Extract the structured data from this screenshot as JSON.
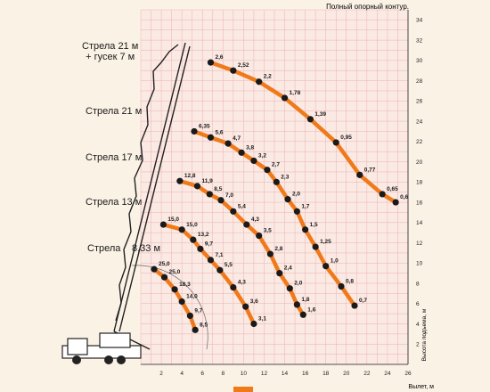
{
  "chart_data": {
    "type": "line",
    "title": "Полный опорный контур.",
    "xlabel": "Вылет, м",
    "ylabel": "Высота подъема, м",
    "xlim": [
      0,
      26
    ],
    "ylim": [
      0,
      35
    ],
    "x_ticks": [
      2,
      4,
      6,
      8,
      10,
      12,
      14,
      16,
      18,
      20,
      22,
      24,
      26
    ],
    "y_ticks": [
      2,
      4,
      6,
      8,
      10,
      12,
      14,
      16,
      18,
      20,
      22,
      24,
      26,
      28,
      30,
      32,
      34
    ],
    "grid": true,
    "series_color": "#f07a1a",
    "series": [
      {
        "name": "Стрела 21 м + гусек 7 м",
        "points": [
          {
            "x": 6.8,
            "y": 29.8,
            "label": "2,6"
          },
          {
            "x": 9.0,
            "y": 29.0,
            "label": "2,52"
          },
          {
            "x": 11.5,
            "y": 27.9,
            "label": "2,2"
          },
          {
            "x": 14.0,
            "y": 26.3,
            "label": "1,78"
          },
          {
            "x": 16.5,
            "y": 24.2,
            "label": "1,39"
          },
          {
            "x": 19.0,
            "y": 21.9,
            "label": "0,95"
          },
          {
            "x": 21.3,
            "y": 18.7,
            "label": "0,77"
          },
          {
            "x": 23.5,
            "y": 16.8,
            "label": "0,65"
          },
          {
            "x": 24.8,
            "y": 16.0,
            "label": "0,6"
          }
        ]
      },
      {
        "name": "Стрела 21 м",
        "points": [
          {
            "x": 5.2,
            "y": 23.0,
            "label": "6,35"
          },
          {
            "x": 6.8,
            "y": 22.4,
            "label": "5,6"
          },
          {
            "x": 8.5,
            "y": 21.8,
            "label": "4,7"
          },
          {
            "x": 9.8,
            "y": 20.9,
            "label": "3,8"
          },
          {
            "x": 11.0,
            "y": 20.1,
            "label": "3,2"
          },
          {
            "x": 12.3,
            "y": 19.2,
            "label": "2,7"
          },
          {
            "x": 13.2,
            "y": 18.0,
            "label": "2,3"
          },
          {
            "x": 14.3,
            "y": 16.3,
            "label": "2,0"
          },
          {
            "x": 15.2,
            "y": 15.1,
            "label": "1,7"
          },
          {
            "x": 16.0,
            "y": 13.3,
            "label": "1,5"
          },
          {
            "x": 17.0,
            "y": 11.6,
            "label": "1,25"
          },
          {
            "x": 18.0,
            "y": 9.7,
            "label": "1,0"
          },
          {
            "x": 19.5,
            "y": 7.7,
            "label": "0,8"
          },
          {
            "x": 20.8,
            "y": 5.8,
            "label": "0,7"
          }
        ]
      },
      {
        "name": "Стрела 17 м",
        "points": [
          {
            "x": 3.8,
            "y": 18.1,
            "label": "12,8"
          },
          {
            "x": 5.5,
            "y": 17.6,
            "label": "11,9"
          },
          {
            "x": 6.7,
            "y": 16.8,
            "label": "8,5"
          },
          {
            "x": 7.8,
            "y": 16.2,
            "label": "7,0"
          },
          {
            "x": 9.0,
            "y": 15.1,
            "label": "5,4"
          },
          {
            "x": 10.3,
            "y": 13.8,
            "label": "4,3"
          },
          {
            "x": 11.5,
            "y": 12.7,
            "label": "3,5"
          },
          {
            "x": 12.6,
            "y": 10.9,
            "label": "2,8"
          },
          {
            "x": 13.5,
            "y": 9.0,
            "label": "2,4"
          },
          {
            "x": 14.5,
            "y": 7.5,
            "label": "2,0"
          },
          {
            "x": 15.2,
            "y": 5.9,
            "label": "1,8"
          },
          {
            "x": 15.8,
            "y": 4.9,
            "label": "1,6"
          }
        ]
      },
      {
        "name": "Стрела 13 м",
        "points": [
          {
            "x": 2.2,
            "y": 13.8,
            "label": "15,0"
          },
          {
            "x": 4.0,
            "y": 13.3,
            "label": "15,0"
          },
          {
            "x": 5.1,
            "y": 12.3,
            "label": "13,2"
          },
          {
            "x": 5.8,
            "y": 11.4,
            "label": "9,7"
          },
          {
            "x": 6.8,
            "y": 10.3,
            "label": "7,1"
          },
          {
            "x": 7.7,
            "y": 9.3,
            "label": "5,5"
          },
          {
            "x": 9.0,
            "y": 7.6,
            "label": "4,3"
          },
          {
            "x": 10.2,
            "y": 5.7,
            "label": "3,6"
          },
          {
            "x": 11.0,
            "y": 4.0,
            "label": "3,1"
          }
        ]
      },
      {
        "name": "Стрела 8,33 м",
        "points": [
          {
            "x": 1.3,
            "y": 9.4,
            "label": "25,0"
          },
          {
            "x": 2.3,
            "y": 8.6,
            "label": "25,0"
          },
          {
            "x": 3.3,
            "y": 7.4,
            "label": "18,3"
          },
          {
            "x": 4.0,
            "y": 6.2,
            "label": "14,0"
          },
          {
            "x": 4.8,
            "y": 4.8,
            "label": "9,7"
          },
          {
            "x": 5.3,
            "y": 3.4,
            "label": "8,5"
          }
        ]
      }
    ]
  },
  "boom_labels": {
    "jib": "Стрела 21 м\n+ гусек 7 м",
    "b21": "Стрела 21 м",
    "b17": "Стрела 17 м",
    "b13": "Стрела 13 м",
    "b8a": "Стрела",
    "b8b": "8,33 м"
  }
}
